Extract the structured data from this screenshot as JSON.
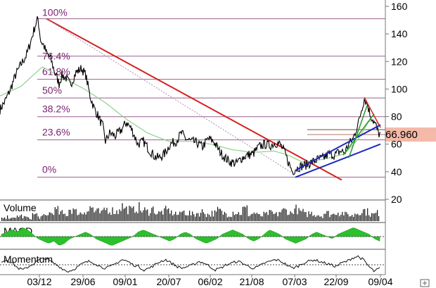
{
  "chart_data": [
    {
      "type": "line",
      "panel": "price",
      "ylim": [
        0,
        160
      ],
      "yticks": [
        "160",
        "140",
        "120",
        "100",
        "80",
        "60",
        "40",
        "20"
      ],
      "grid": true,
      "fib_labels": [
        "100%",
        "76.4%",
        "61.8%",
        "50%",
        "38.2%",
        "23.6%",
        "0%"
      ],
      "fib_ratios": [
        1,
        0.764,
        0.618,
        0.5,
        0.382,
        0.236,
        0
      ],
      "fib_range": [
        36,
        151
      ],
      "last_value_label": "66.960",
      "last_value": 66.96,
      "colors": {
        "price": "#000000",
        "moving_average": "#8fd18f",
        "fib_grid": "#7a2a6a",
        "fib_text": "#7a1f6e",
        "major_trend": "#d42020",
        "channel": "#1a2abf",
        "last_value_band": "#f4b9a8"
      },
      "x_ticks": [
        "03/12",
        "29/06",
        "09/01",
        "20/07",
        "06/02",
        "21/08",
        "07/03",
        "22/09",
        "09/04"
      ],
      "price_anchors": [
        [
          0,
          85
        ],
        [
          8,
          92
        ],
        [
          15,
          100
        ],
        [
          22,
          110
        ],
        [
          30,
          118
        ],
        [
          38,
          125
        ],
        [
          44,
          135
        ],
        [
          50,
          146
        ],
        [
          54,
          151
        ],
        [
          58,
          135
        ],
        [
          62,
          132
        ],
        [
          66,
          126
        ],
        [
          72,
          122
        ],
        [
          78,
          112
        ],
        [
          84,
          104
        ],
        [
          88,
          110
        ],
        [
          94,
          108
        ],
        [
          100,
          103
        ],
        [
          108,
          112
        ],
        [
          116,
          115
        ],
        [
          122,
          110
        ],
        [
          128,
          95
        ],
        [
          134,
          86
        ],
        [
          140,
          80
        ],
        [
          146,
          73
        ],
        [
          150,
          62
        ],
        [
          156,
          68
        ],
        [
          164,
          66
        ],
        [
          172,
          70
        ],
        [
          180,
          76
        ],
        [
          188,
          70
        ],
        [
          196,
          60
        ],
        [
          204,
          62
        ],
        [
          212,
          56
        ],
        [
          220,
          51
        ],
        [
          226,
          50
        ],
        [
          234,
          53
        ],
        [
          242,
          60
        ],
        [
          250,
          62
        ],
        [
          258,
          68
        ],
        [
          264,
          64
        ],
        [
          272,
          62
        ],
        [
          280,
          61
        ],
        [
          288,
          58
        ],
        [
          296,
          64
        ],
        [
          304,
          62
        ],
        [
          312,
          55
        ],
        [
          320,
          50
        ],
        [
          328,
          47
        ],
        [
          336,
          46
        ],
        [
          344,
          50
        ],
        [
          352,
          52
        ],
        [
          360,
          53
        ],
        [
          368,
          58
        ],
        [
          376,
          60
        ],
        [
          384,
          59
        ],
        [
          392,
          61
        ],
        [
          398,
          60
        ],
        [
          404,
          55
        ],
        [
          410,
          47
        ],
        [
          416,
          40
        ],
        [
          420,
          42
        ],
        [
          428,
          44
        ],
        [
          436,
          45
        ],
        [
          444,
          47
        ],
        [
          452,
          49
        ],
        [
          460,
          50
        ],
        [
          468,
          53
        ],
        [
          476,
          52
        ],
        [
          484,
          55
        ],
        [
          490,
          54
        ],
        [
          496,
          60
        ],
        [
          502,
          64
        ],
        [
          506,
          70
        ],
        [
          510,
          76
        ],
        [
          514,
          85
        ],
        [
          518,
          93
        ],
        [
          522,
          90
        ],
        [
          526,
          82
        ],
        [
          530,
          78
        ],
        [
          534,
          74
        ],
        [
          538,
          68
        ],
        [
          541,
          67
        ]
      ],
      "ma_anchors": [
        [
          0,
          95
        ],
        [
          30,
          102
        ],
        [
          60,
          116
        ],
        [
          90,
          108
        ],
        [
          120,
          100
        ],
        [
          150,
          90
        ],
        [
          180,
          78
        ],
        [
          210,
          68
        ],
        [
          240,
          62
        ],
        [
          270,
          62
        ],
        [
          300,
          60
        ],
        [
          330,
          56
        ],
        [
          360,
          54
        ],
        [
          390,
          55
        ],
        [
          410,
          52
        ],
        [
          430,
          47
        ],
        [
          460,
          49
        ],
        [
          490,
          53
        ],
        [
          510,
          64
        ],
        [
          525,
          77
        ],
        [
          541,
          74
        ]
      ],
      "trendlines": [
        {
          "name": "red-downtrend",
          "from": [
            66,
            151
          ],
          "to": [
            486,
            34
          ]
        },
        {
          "name": "dotted-guide",
          "from": [
            66,
            151
          ],
          "to": [
            416,
            39
          ]
        },
        {
          "name": "red-peak-line",
          "from": [
            518,
            94
          ],
          "to": [
            541,
            72
          ]
        },
        {
          "name": "channel-upper",
          "from": [
            420,
            41
          ],
          "to": [
            541,
            74
          ]
        },
        {
          "name": "channel-lower",
          "from": [
            420,
            36
          ],
          "to": [
            541,
            60
          ]
        },
        {
          "name": "green-fan-a",
          "from": [
            488,
            52
          ],
          "to": [
            532,
            82
          ]
        },
        {
          "name": "green-fan-b",
          "from": [
            496,
            50
          ],
          "to": [
            522,
            88
          ]
        }
      ]
    },
    {
      "type": "bar",
      "panel": "volume",
      "title": "Volume",
      "values": [
        2,
        3,
        2,
        4,
        3,
        2,
        5,
        3,
        4,
        6,
        8,
        6,
        5,
        9,
        7,
        6,
        8,
        10,
        7,
        6,
        9,
        8,
        7,
        11,
        9,
        8,
        10,
        8,
        7,
        9,
        6,
        7,
        8,
        6,
        5,
        7,
        6,
        5,
        6,
        7,
        5,
        6,
        8,
        6,
        5,
        7,
        6,
        9,
        5,
        6,
        4,
        5,
        6,
        5,
        7,
        8,
        6,
        9,
        7,
        5,
        6,
        5,
        4,
        6,
        5,
        7,
        6,
        5,
        4,
        6,
        8,
        7,
        5,
        6
      ]
    },
    {
      "type": "area",
      "panel": "macd",
      "title": "MACD",
      "values": [
        1,
        2,
        3,
        2,
        4,
        3,
        1,
        -1,
        -2,
        -3,
        -2,
        -4,
        -3,
        -1,
        0,
        1,
        2,
        1,
        -1,
        -2,
        -3,
        -4,
        -3,
        -2,
        -1,
        0,
        2,
        3,
        2,
        1,
        0,
        -1,
        -2,
        -1,
        1,
        2,
        1,
        -1,
        -2,
        -3,
        -2,
        -1,
        1,
        2,
        3,
        2,
        1,
        -1,
        -2,
        -1,
        1,
        3,
        2,
        1,
        -1,
        -2,
        -3,
        -2,
        -1,
        1,
        2,
        1,
        0,
        -1,
        1,
        2,
        3,
        4,
        3,
        2,
        1,
        -1,
        -2
      ]
    },
    {
      "type": "line",
      "panel": "momentum",
      "title": "Momentum",
      "values": [
        2,
        3,
        1,
        -2,
        -3,
        -1,
        1,
        3,
        4,
        2,
        0,
        -2,
        -4,
        -3,
        -1,
        1,
        2,
        1,
        -1,
        -2,
        -1,
        1,
        3,
        2,
        0,
        -1,
        -3,
        -2,
        0,
        2,
        3,
        1,
        -1,
        -2,
        -1,
        0,
        2,
        1,
        -1,
        -3,
        -2,
        0,
        1,
        2,
        1,
        -1,
        -2,
        -1,
        1,
        2,
        3,
        2,
        0,
        -2,
        -1,
        1,
        2,
        3,
        2,
        1,
        0,
        -1,
        1,
        2,
        4,
        5,
        3,
        -1,
        -4,
        -2
      ]
    }
  ]
}
